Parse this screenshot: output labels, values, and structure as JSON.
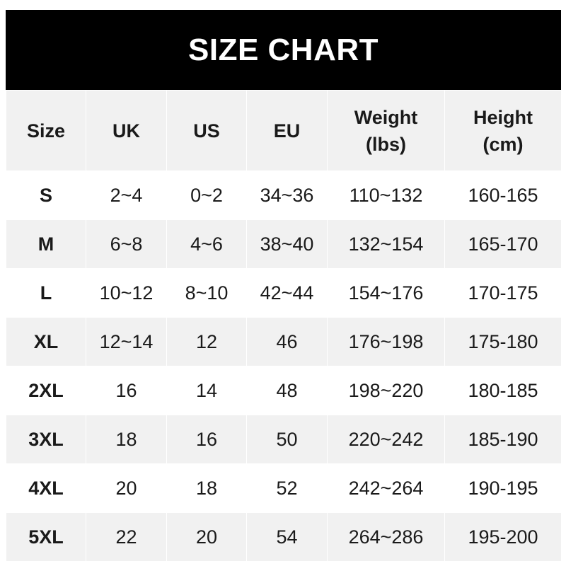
{
  "title": "SIZE CHART",
  "headers": [
    {
      "line1": "Size",
      "line2": ""
    },
    {
      "line1": "UK",
      "line2": ""
    },
    {
      "line1": "US",
      "line2": ""
    },
    {
      "line1": "EU",
      "line2": ""
    },
    {
      "line1": "Weight",
      "line2": "(lbs)"
    },
    {
      "line1": "Height",
      "line2": "(cm)"
    }
  ],
  "rows": [
    [
      "S",
      "2~4",
      "0~2",
      "34~36",
      "110~132",
      "160-165"
    ],
    [
      "M",
      "6~8",
      "4~6",
      "38~40",
      "132~154",
      "165-170"
    ],
    [
      "L",
      "10~12",
      "8~10",
      "42~44",
      "154~176",
      "170-175"
    ],
    [
      "XL",
      "12~14",
      "12",
      "46",
      "176~198",
      "175-180"
    ],
    [
      "2XL",
      "16",
      "14",
      "48",
      "198~220",
      "180-185"
    ],
    [
      "3XL",
      "18",
      "16",
      "50",
      "220~242",
      "185-190"
    ],
    [
      "4XL",
      "20",
      "18",
      "52",
      "242~264",
      "190-195"
    ],
    [
      "5XL",
      "22",
      "20",
      "54",
      "264~286",
      "195-200"
    ]
  ],
  "colors": {
    "header_bg": "#000000",
    "stripe": "#f1f1f1",
    "text": "#1a1a1a"
  }
}
